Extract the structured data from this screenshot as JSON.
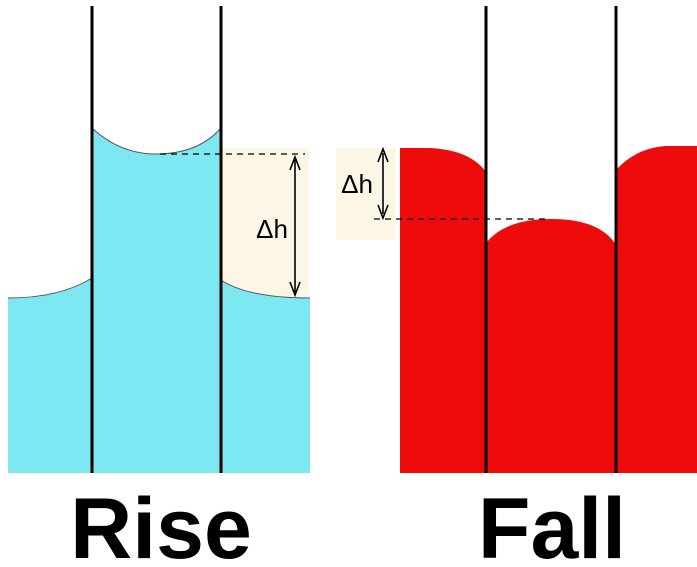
{
  "colors": {
    "water": "#7ee8f2",
    "mercury": "#ee0b0b",
    "tube": "#000000",
    "background": "#ffffff",
    "label_bg": "#fbf6e6"
  },
  "panels": {
    "rise": {
      "caption": "Rise",
      "delta_label": "Δh"
    },
    "fall": {
      "caption": "Fall",
      "delta_label": "Δh"
    }
  }
}
